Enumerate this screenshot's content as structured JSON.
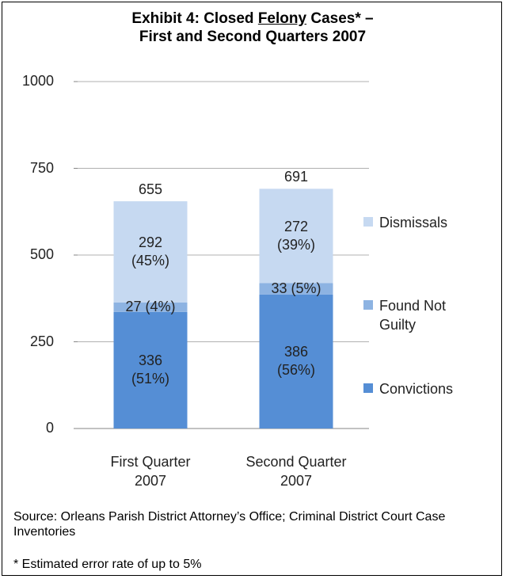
{
  "chart_data": {
    "type": "stacked_bar",
    "title": [
      "Exhibit 4: Closed",
      "Felony",
      "Cases* –",
      "First and Second Quarters 2007"
    ],
    "categories": [
      "First Quarter 2007",
      "Second Quarter 2007"
    ],
    "series": [
      {
        "name": "Convictions",
        "color": "#558ed5",
        "values": [
          336,
          386
        ],
        "value_labels": [
          "336 (51%)",
          "386 (56%)"
        ]
      },
      {
        "name": "Found Not Guilty",
        "color": "#8db3e2",
        "values": [
          27,
          33
        ],
        "value_labels": [
          "27 (4%)",
          "33 (5%)"
        ]
      },
      {
        "name": "Dismissals",
        "color": "#c6d9f1",
        "values": [
          292,
          272
        ],
        "value_labels": [
          "292 (45%)",
          "272 (39%)"
        ]
      }
    ],
    "totals": [
      655,
      691
    ],
    "ylim": [
      0,
      1000
    ],
    "yticks": [
      0,
      250,
      500,
      750,
      1000
    ],
    "grid": true,
    "legend": "right",
    "notes": [
      "Source: Orleans Parish District Attorney’s Office; Criminal District Court Case Inventories",
      "* Estimated error rate of up to 5%"
    ]
  }
}
